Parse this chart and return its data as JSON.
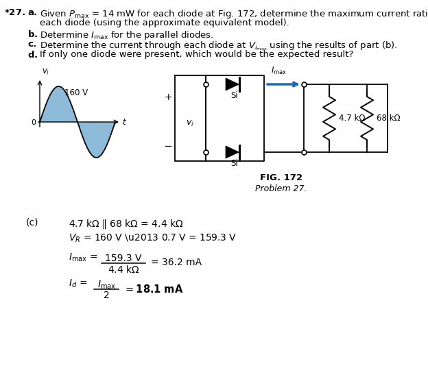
{
  "bg_color": "#ffffff",
  "text_color": "#000000",
  "blue_color": "#2a6ebb",
  "arrow_color": "#1a6ab5",
  "fig_label": "FIG. 172",
  "fig_caption": "Problem 27.",
  "resistor1": "4.7 kΩ",
  "resistor2": "68 kΩ",
  "voltage_label": "160 V",
  "current_label": "I_max",
  "sine_color": "#7ab0d4"
}
